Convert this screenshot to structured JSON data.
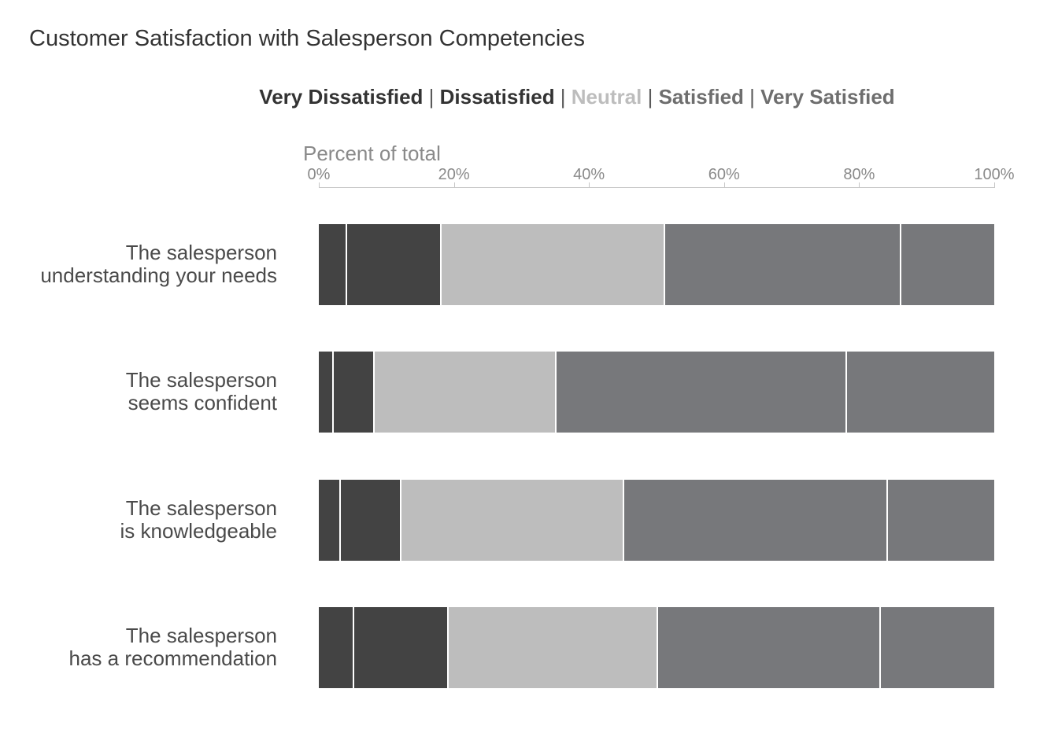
{
  "title": "Customer Satisfaction with Salesperson Competencies",
  "legend": {
    "separator": "|",
    "items": [
      {
        "label": "Very Dissatisfied",
        "color": "#333333"
      },
      {
        "label": "Dissatisfied",
        "color": "#333333"
      },
      {
        "label": "Neutral",
        "color": "#bdbdbd"
      },
      {
        "label": "Satisfied",
        "color": "#6e6e6e"
      },
      {
        "label": "Very Satisfied",
        "color": "#6e6e6e"
      }
    ]
  },
  "chart_data": {
    "type": "bar",
    "orientation": "horizontal",
    "stacked": true,
    "title": "Customer Satisfaction with Salesperson Competencies",
    "xlabel": "Percent of total",
    "xlim": [
      0,
      100
    ],
    "ticks": [
      0,
      20,
      40,
      60,
      80,
      100
    ],
    "tick_labels": [
      "0%",
      "20%",
      "40%",
      "60%",
      "80%",
      "100%"
    ],
    "categories": [
      [
        "The salesperson",
        "understanding your needs"
      ],
      [
        "The salesperson",
        "seems confident"
      ],
      [
        "The salesperson",
        "is knowledgeable"
      ],
      [
        "The salesperson",
        "has a recommendation"
      ]
    ],
    "series": [
      {
        "name": "Very Dissatisfied",
        "color": "#434343",
        "values": [
          4,
          2,
          3,
          5
        ]
      },
      {
        "name": "Dissatisfied",
        "color": "#434343",
        "values": [
          14,
          6,
          9,
          14
        ]
      },
      {
        "name": "Neutral",
        "color": "#bdbdbd",
        "values": [
          33,
          27,
          33,
          31
        ]
      },
      {
        "name": "Satisfied",
        "color": "#77787b",
        "values": [
          35,
          43,
          39,
          33
        ]
      },
      {
        "name": "Very Satisfied",
        "color": "#77787b",
        "values": [
          14,
          22,
          16,
          17
        ]
      }
    ]
  }
}
